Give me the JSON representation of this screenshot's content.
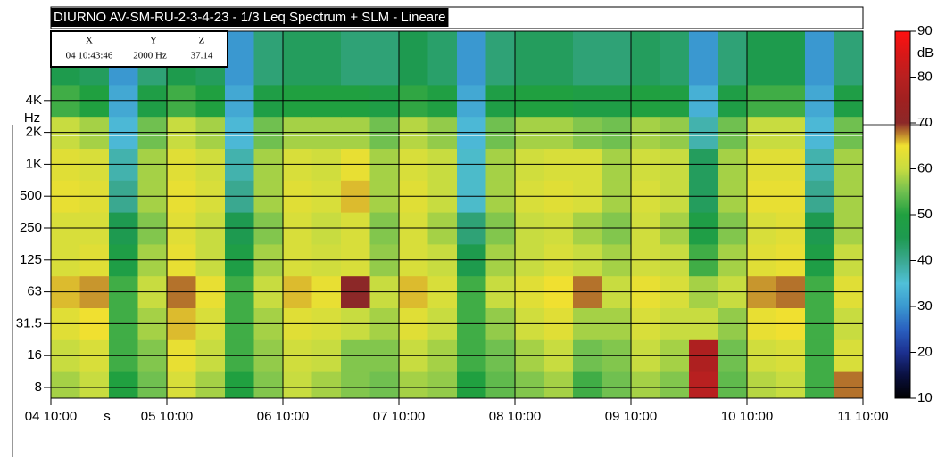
{
  "chart_data": {
    "type": "heatmap",
    "title": "DIURNO AV-SM-RU-2-3-4-23 - 1/3 Leq Spectrum + SLM - Lineare",
    "cursor": {
      "x_label": "X",
      "y_label": "Y",
      "z_label": "Z",
      "x": "04 10:43:46",
      "y": "2000 Hz",
      "z": 37.14
    },
    "x_unit": "s",
    "y_unit": "Hz",
    "colorbar_label": "dB",
    "categories": [
      "04 10:00",
      "05 10:00",
      "06 10:00",
      "07 10:00",
      "08 10:00",
      "09 10:00",
      "10 10:00",
      "11 10:00"
    ],
    "y_categories": [
      "8",
      "16",
      "31.5",
      "63",
      "125",
      "250",
      "500",
      "1K",
      "2K",
      "4K",
      null
    ],
    "z": [
      [
        58,
        60,
        50,
        55,
        62,
        58,
        50,
        56,
        60,
        58,
        56,
        55,
        58,
        57,
        50,
        54,
        56,
        58,
        52,
        55,
        58,
        56,
        80,
        54,
        59,
        60,
        52,
        68
      ],
      [
        60,
        62,
        52,
        56,
        64,
        60,
        52,
        57,
        61,
        60,
        56,
        56,
        60,
        58,
        52,
        55,
        58,
        60,
        55,
        56,
        60,
        58,
        78,
        55,
        61,
        62,
        52,
        62
      ],
      [
        63,
        65,
        52,
        58,
        66,
        62,
        52,
        58,
        63,
        62,
        60,
        58,
        63,
        60,
        52,
        57,
        61,
        63,
        58,
        58,
        62,
        60,
        60,
        57,
        64,
        65,
        52,
        60
      ],
      [
        66,
        67,
        52,
        60,
        68,
        64,
        52,
        60,
        66,
        64,
        70,
        60,
        66,
        62,
        52,
        60,
        63,
        65,
        68,
        60,
        64,
        62,
        58,
        60,
        67,
        68,
        52,
        63
      ],
      [
        62,
        63,
        48,
        58,
        64,
        60,
        48,
        58,
        62,
        61,
        62,
        57,
        62,
        60,
        46,
        58,
        60,
        62,
        60,
        58,
        61,
        60,
        52,
        58,
        63,
        64,
        48,
        60
      ],
      [
        62,
        62,
        45,
        56,
        63,
        60,
        45,
        56,
        62,
        60,
        62,
        56,
        62,
        58,
        42,
        56,
        60,
        61,
        58,
        56,
        61,
        58,
        48,
        56,
        62,
        63,
        45,
        58
      ],
      [
        64,
        63,
        40,
        58,
        64,
        62,
        40,
        58,
        63,
        62,
        66,
        58,
        63,
        60,
        36,
        58,
        62,
        63,
        62,
        58,
        62,
        60,
        44,
        58,
        64,
        64,
        40,
        58
      ],
      [
        63,
        62,
        38,
        58,
        63,
        61,
        38,
        58,
        62,
        61,
        64,
        58,
        62,
        60,
        36,
        58,
        61,
        62,
        62,
        58,
        61,
        60,
        44,
        58,
        63,
        63,
        38,
        58
      ],
      [
        60,
        58,
        34,
        55,
        60,
        58,
        34,
        55,
        58,
        58,
        58,
        55,
        59,
        57,
        34,
        55,
        58,
        58,
        56,
        55,
        58,
        57,
        38,
        55,
        60,
        60,
        34,
        55
      ],
      [
        52,
        50,
        32,
        48,
        52,
        50,
        32,
        48,
        50,
        50,
        50,
        48,
        51,
        49,
        32,
        48,
        50,
        50,
        48,
        48,
        50,
        49,
        33,
        48,
        52,
        52,
        32,
        48
      ],
      [
        46,
        44,
        30,
        42,
        46,
        44,
        30,
        42,
        44,
        44,
        42,
        42,
        45,
        43,
        30,
        42,
        44,
        44,
        42,
        42,
        44,
        43,
        30,
        42,
        46,
        46,
        30,
        42
      ]
    ],
    "zlim": [
      10,
      90
    ],
    "zticks": [
      10,
      20,
      30,
      40,
      50,
      60,
      70,
      80,
      90
    ],
    "colorscale": [
      "#000000",
      "#0a1040",
      "#1c3090",
      "#2a60c0",
      "#3a98d0",
      "#50c0d8",
      "#3aa890",
      "#1e9a50",
      "#20a040",
      "#70c050",
      "#c8dc40",
      "#f0e030",
      "#8c2828",
      "#a02020",
      "#b82020",
      "#d81818",
      "#ff1010"
    ],
    "grid": true
  }
}
